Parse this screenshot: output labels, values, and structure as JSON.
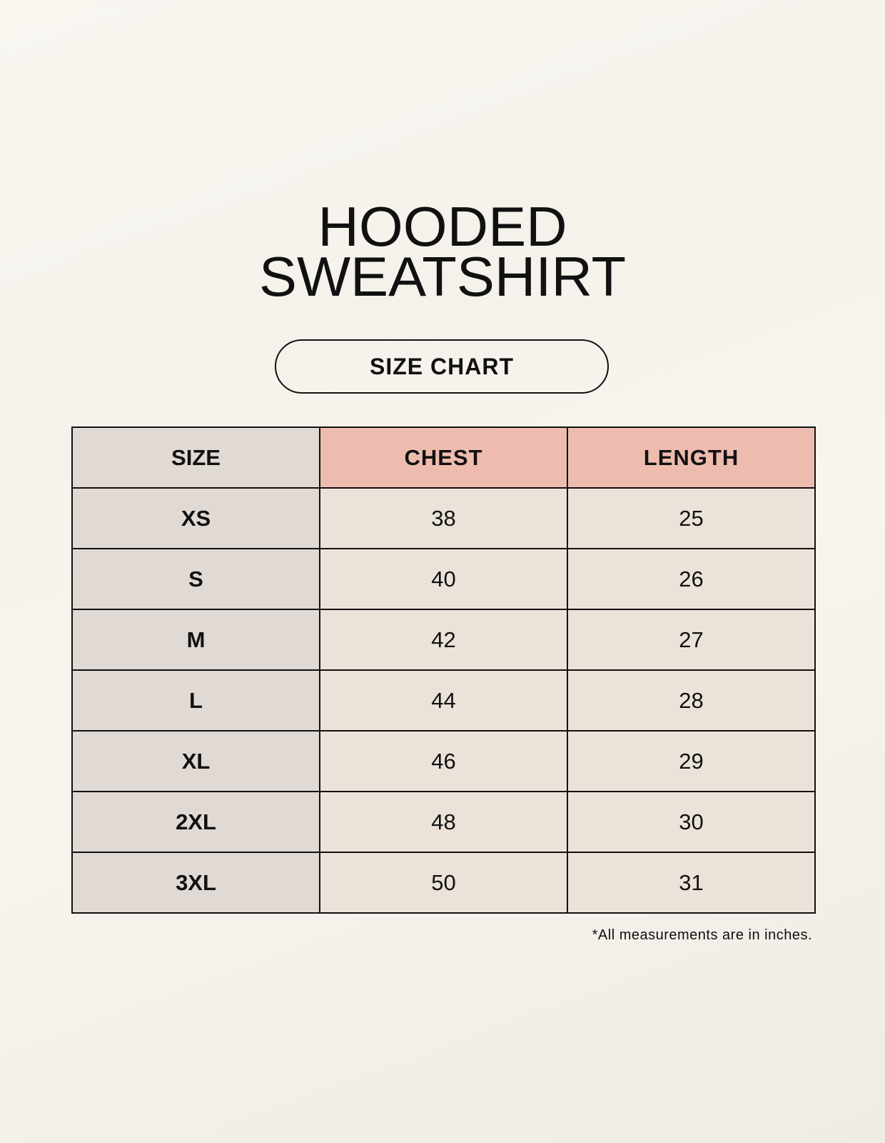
{
  "title": {
    "line1": "HOODED",
    "line2": "SWEATSHIRT"
  },
  "subtitle": "SIZE CHART",
  "table": {
    "headers": [
      "SIZE",
      "CHEST",
      "LENGTH"
    ],
    "rows": [
      [
        "XS",
        "38",
        "25"
      ],
      [
        "S",
        "40",
        "26"
      ],
      [
        "M",
        "42",
        "27"
      ],
      [
        "L",
        "44",
        "28"
      ],
      [
        "XL",
        "46",
        "29"
      ],
      [
        "2XL",
        "48",
        "30"
      ],
      [
        "3XL",
        "50",
        "31"
      ]
    ]
  },
  "footnote": "*All measurements are in inches.",
  "colors": {
    "size_column": "#e0d9d4",
    "header_accent": "#eebcaf",
    "value_cells": "#ebe3da",
    "background": "#f8f5ef"
  }
}
